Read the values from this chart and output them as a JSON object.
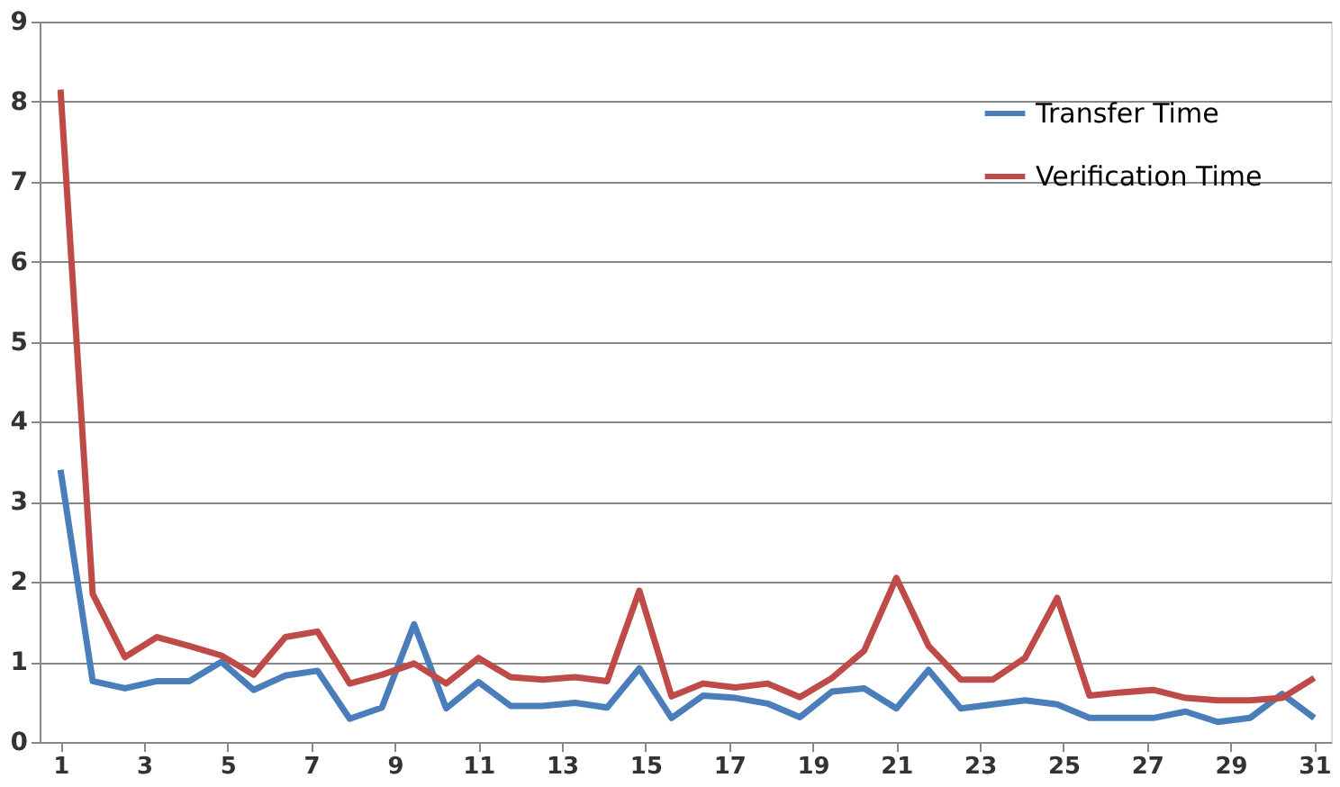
{
  "chart_data": {
    "type": "line",
    "x": [
      1,
      1.77,
      2.54,
      3.31,
      4.08,
      4.85,
      5.62,
      6.38,
      7.15,
      7.92,
      8.69,
      9.46,
      10.23,
      11,
      11.77,
      12.54,
      13.31,
      14.08,
      14.85,
      15.62,
      16.38,
      17.15,
      17.92,
      18.69,
      19.46,
      20.23,
      21,
      21.77,
      22.54,
      23.31,
      24.08,
      24.85,
      25.62,
      26.38,
      27.15,
      27.92,
      28.69,
      29.46,
      30.23,
      31
    ],
    "series": [
      {
        "name": "Transfer Time",
        "color": "#4a7ebb",
        "values": [
          3.4,
          0.76,
          0.67,
          0.76,
          0.76,
          1.0,
          0.65,
          0.83,
          0.89,
          0.29,
          0.43,
          1.47,
          0.42,
          0.75,
          0.45,
          0.45,
          0.49,
          0.43,
          0.92,
          0.3,
          0.58,
          0.55,
          0.48,
          0.31,
          0.63,
          0.67,
          0.42,
          0.9,
          0.42,
          0.47,
          0.52,
          0.47,
          0.3,
          0.3,
          0.3,
          0.38,
          0.25,
          0.3,
          0.6,
          0.3
        ]
      },
      {
        "name": "Verification Time",
        "color": "#be4b48",
        "values": [
          8.15,
          1.85,
          1.06,
          1.31,
          1.2,
          1.08,
          0.84,
          1.31,
          1.38,
          0.73,
          0.84,
          0.98,
          0.73,
          1.05,
          0.81,
          0.78,
          0.81,
          0.76,
          1.89,
          0.57,
          0.73,
          0.68,
          0.73,
          0.56,
          0.8,
          1.14,
          2.05,
          1.2,
          0.78,
          0.78,
          1.05,
          1.8,
          0.58,
          0.62,
          0.65,
          0.55,
          0.52,
          0.52,
          0.55,
          0.8
        ]
      }
    ],
    "xlim": [
      0.5,
      31.4
    ],
    "xticks": [
      1,
      3,
      5,
      7,
      9,
      11,
      13,
      15,
      17,
      19,
      21,
      23,
      25,
      27,
      29,
      31
    ],
    "ylim": [
      0,
      9
    ],
    "yticks": [
      0,
      1,
      2,
      3,
      4,
      5,
      6,
      7,
      8,
      9
    ],
    "grid": "y",
    "legend": "top right",
    "marker": "none",
    "line_style": "solid"
  }
}
